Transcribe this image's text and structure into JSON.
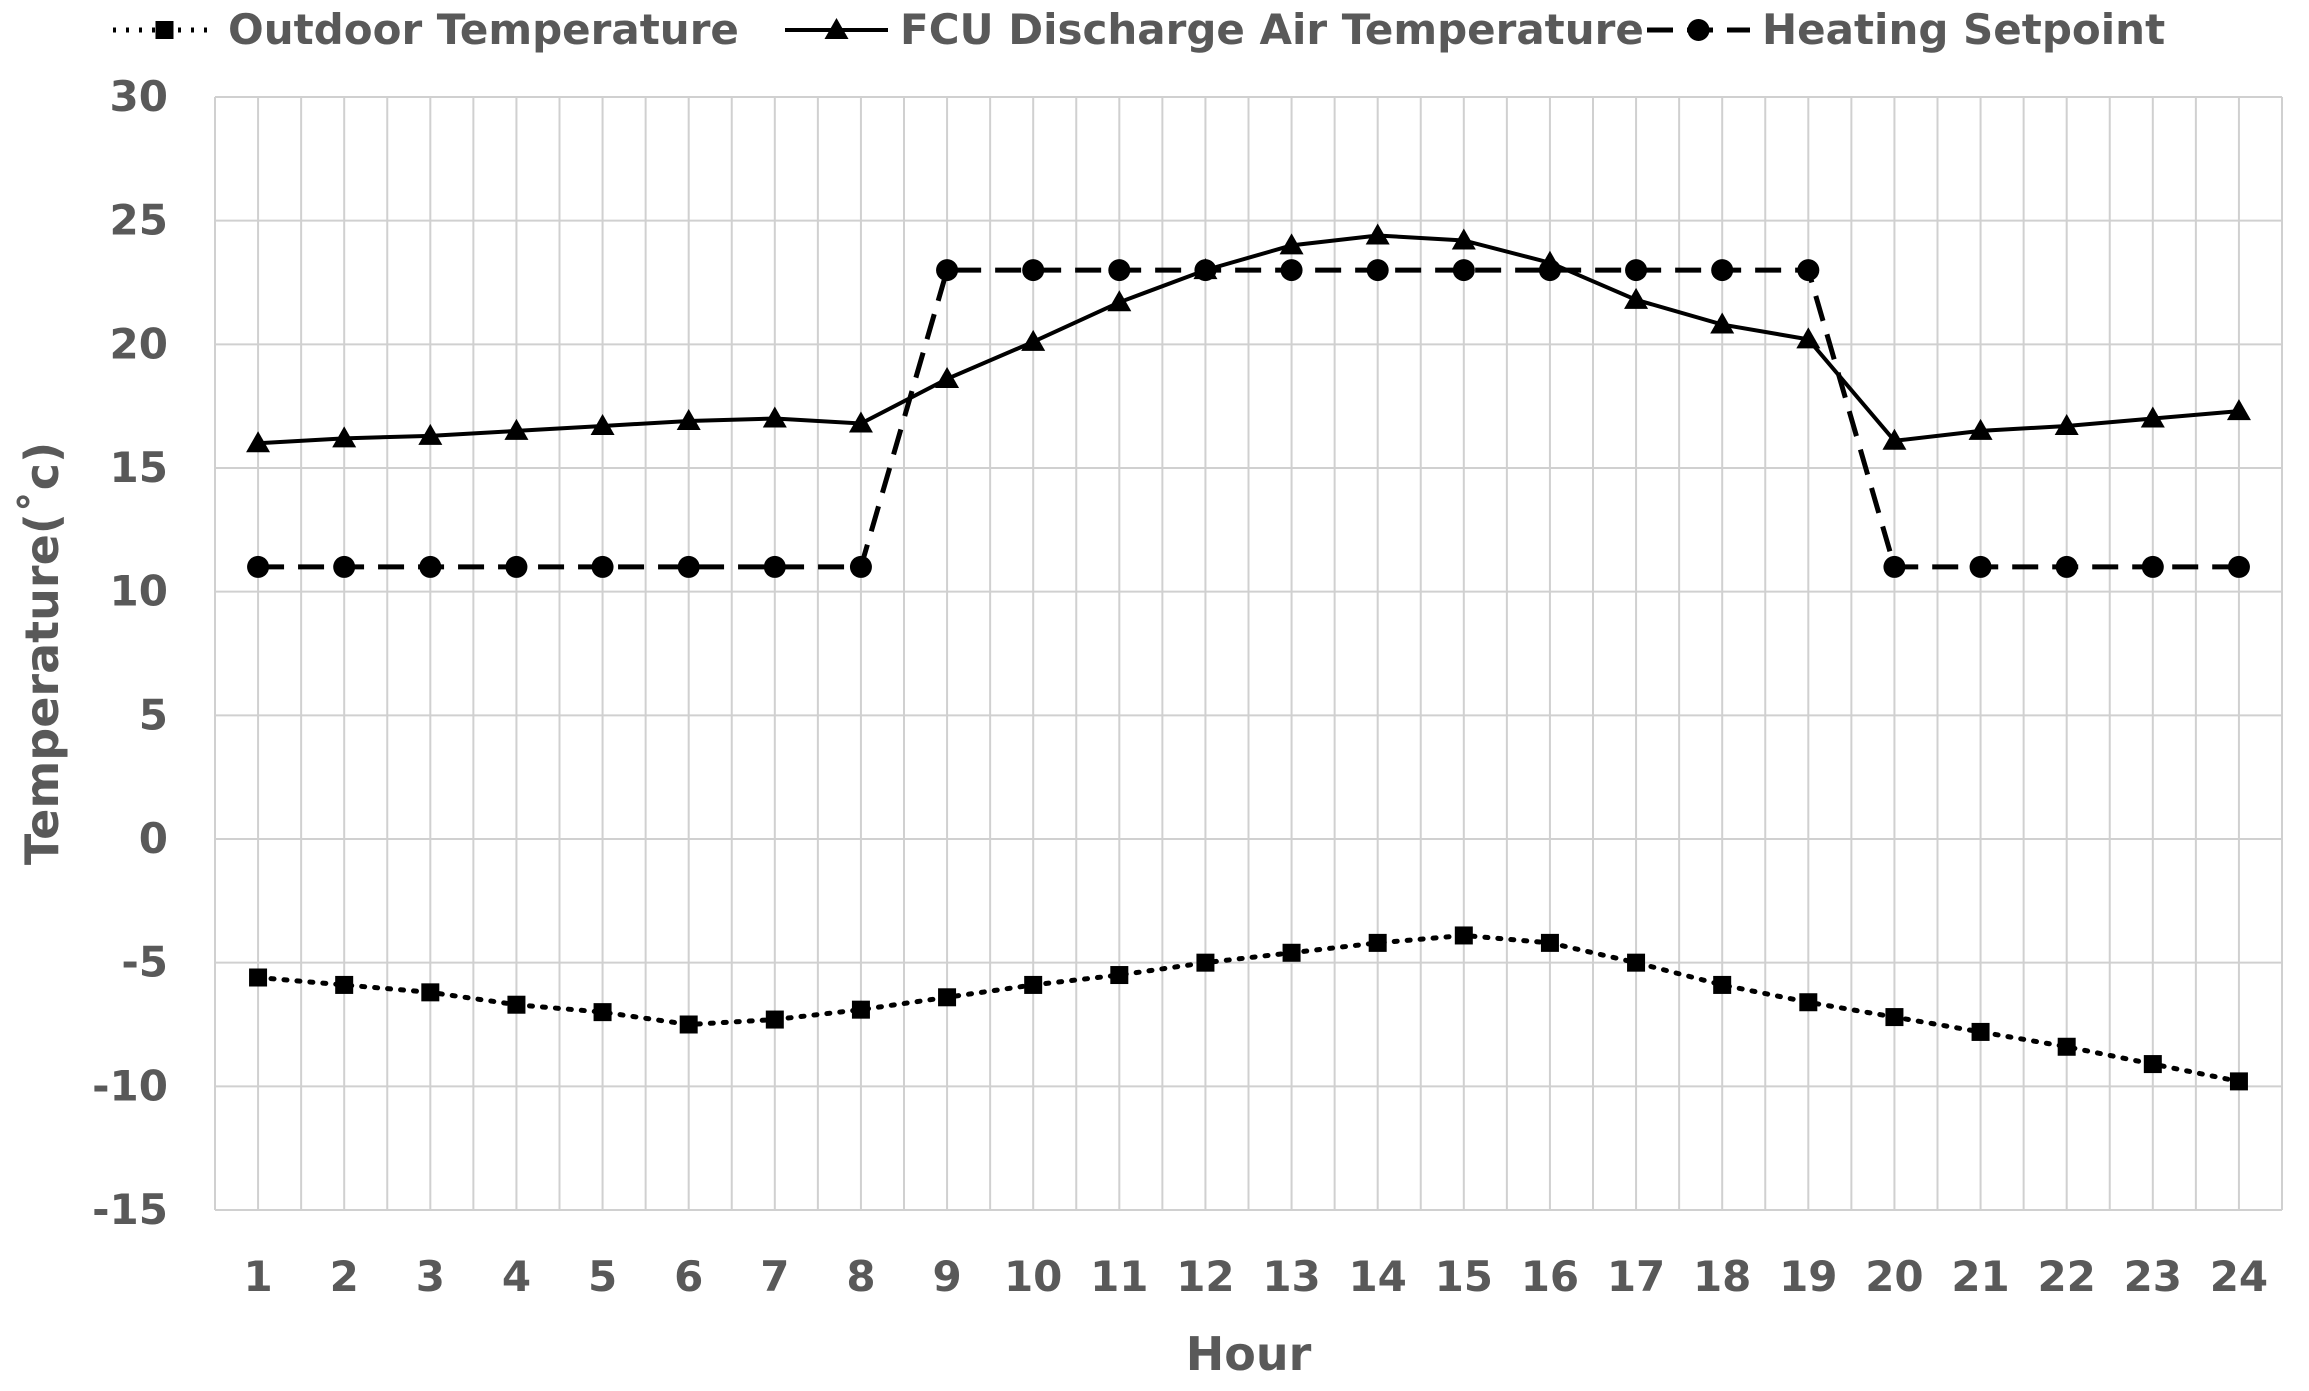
{
  "chart_data": {
    "type": "line",
    "title": "",
    "xlabel": "Hour",
    "ylabel": "Temperature(˚c)",
    "ylim": [
      -15,
      30
    ],
    "yticks": [
      -15,
      -10,
      -5,
      0,
      5,
      10,
      15,
      20,
      25,
      30
    ],
    "grid": true,
    "legend_position": "top",
    "x": [
      1,
      2,
      3,
      4,
      5,
      6,
      7,
      8,
      9,
      10,
      11,
      12,
      13,
      14,
      15,
      16,
      17,
      18,
      19,
      20,
      21,
      22,
      23,
      24
    ],
    "series": [
      {
        "name": "Outdoor Temperature",
        "line_style": "dotted",
        "marker": "square",
        "color": "#000000",
        "values": [
          -5.6,
          -5.9,
          -6.2,
          -6.7,
          -7.0,
          -7.5,
          -7.3,
          -6.9,
          -6.4,
          -5.9,
          -5.5,
          -5.0,
          -4.6,
          -4.2,
          -3.9,
          -4.2,
          -5.0,
          -5.9,
          -6.6,
          -7.2,
          -7.8,
          -8.4,
          -9.1,
          -9.8
        ]
      },
      {
        "name": "FCU Discharge Air Temperature",
        "line_style": "solid",
        "marker": "triangle",
        "color": "#000000",
        "values": [
          16.0,
          16.2,
          16.3,
          16.5,
          16.7,
          16.9,
          17.0,
          16.8,
          18.6,
          20.1,
          21.7,
          23.0,
          24.0,
          24.4,
          24.2,
          23.3,
          21.8,
          20.8,
          20.2,
          16.1,
          16.5,
          16.7,
          17.0,
          17.3
        ]
      },
      {
        "name": "Heating Setpoint",
        "line_style": "dashed",
        "marker": "circle",
        "color": "#000000",
        "values": [
          11,
          11,
          11,
          11,
          11,
          11,
          11,
          11,
          23,
          23,
          23,
          23,
          23,
          23,
          23,
          23,
          23,
          23,
          23,
          11,
          11,
          11,
          11,
          11
        ]
      }
    ]
  }
}
